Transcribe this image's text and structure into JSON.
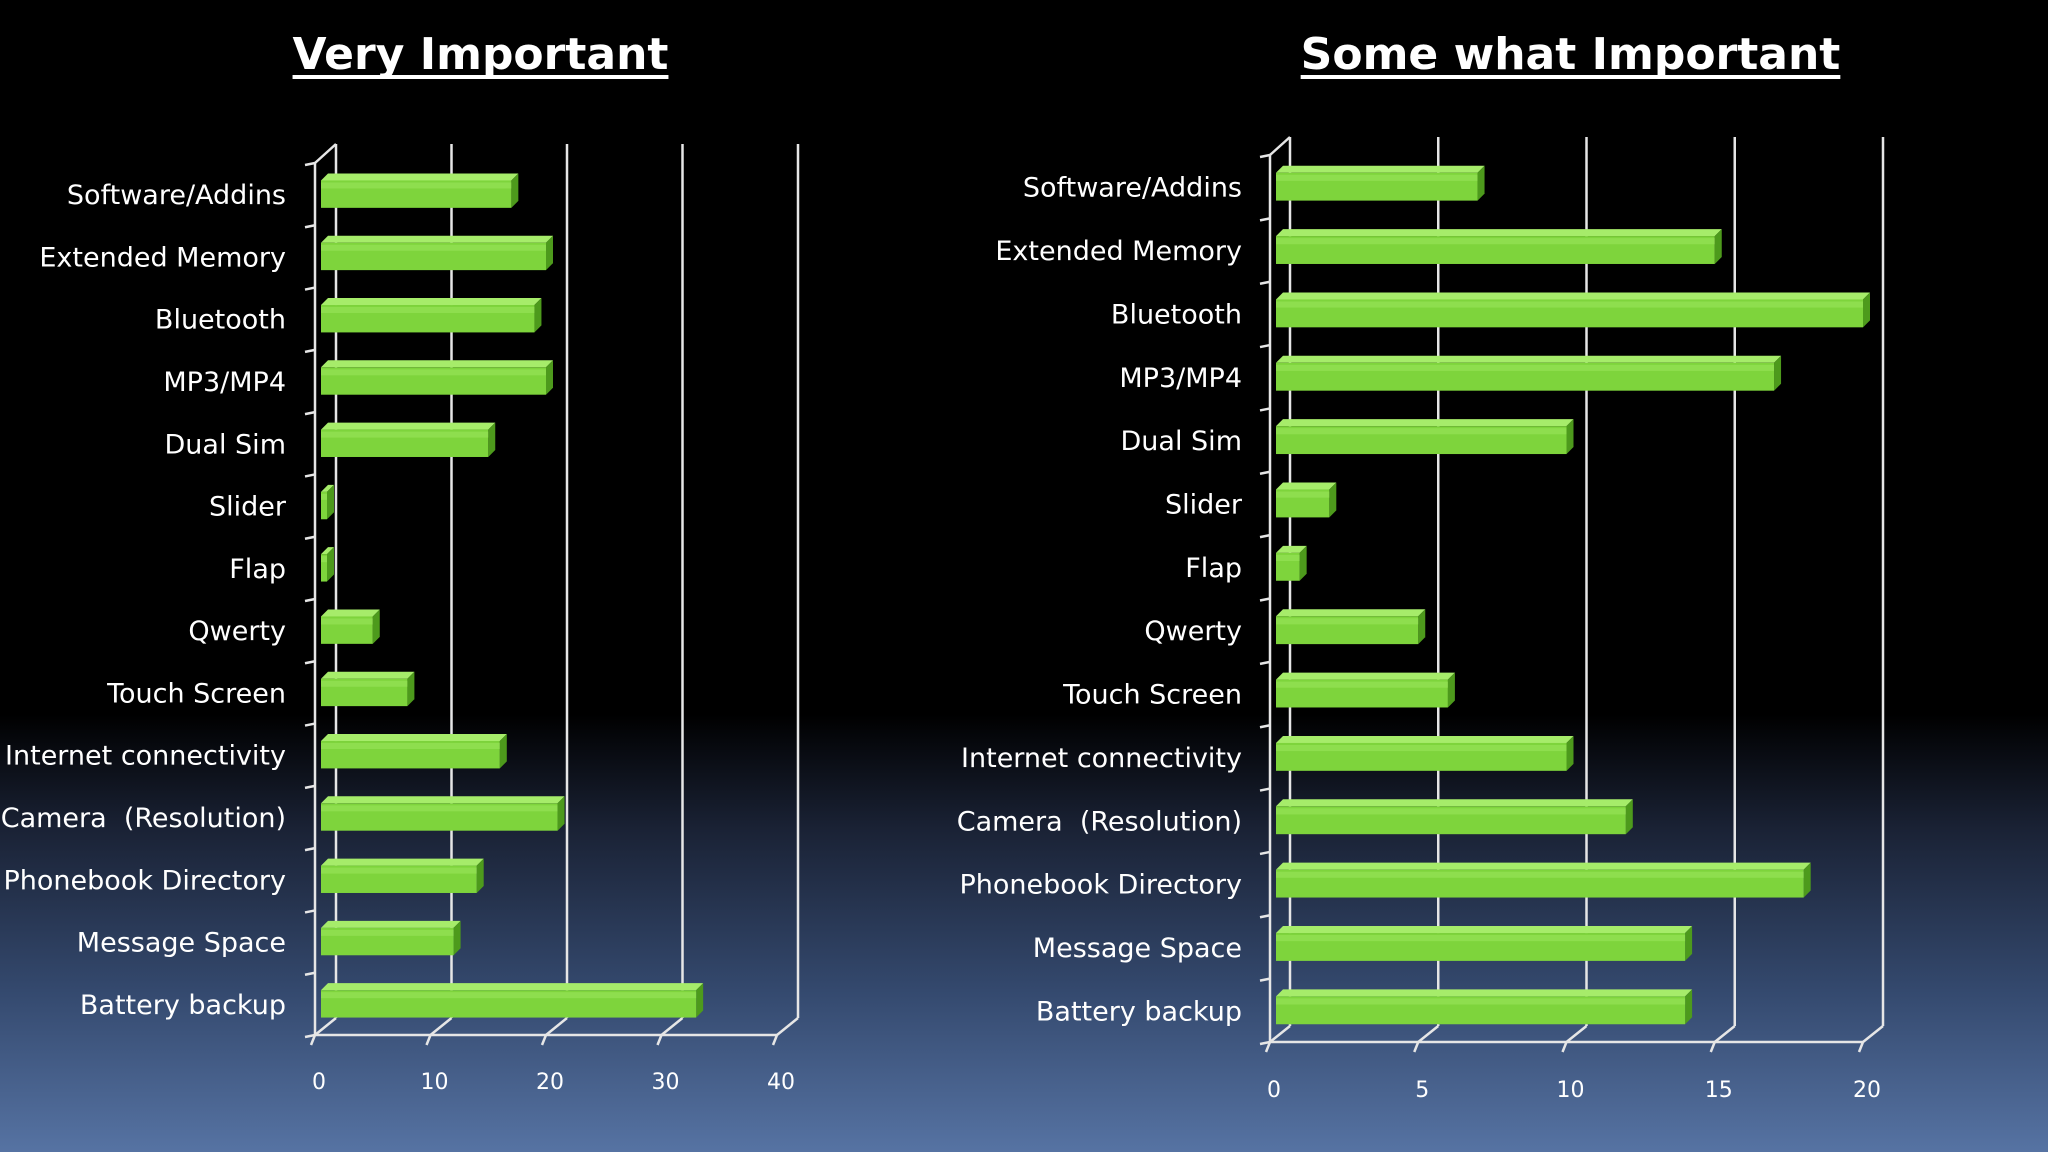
{
  "colors": {
    "bar_front": "#7ed43c",
    "bar_top": "#a6ec6a",
    "bar_side": "#4d9a1c",
    "axis": "#e6e6e6",
    "text": "#ffffff"
  },
  "chart_data": [
    {
      "type": "bar",
      "orientation": "horizontal",
      "title": "Very Important",
      "categories": [
        "Software/Addins",
        "Extended Memory",
        "Bluetooth",
        "MP3/MP4",
        "Dual Sim",
        "Slider",
        "Flap",
        "Qwerty",
        "Touch Screen",
        "Internet connectivity",
        "Camera  (Resolution)",
        "Phonebook Directory",
        "Message Space",
        "Battery backup"
      ],
      "values": [
        17,
        20,
        19,
        20,
        15,
        1,
        1,
        5,
        8,
        16,
        21,
        14,
        12,
        33
      ],
      "xlim": [
        0,
        40
      ],
      "ticks": [
        0,
        10,
        20,
        30,
        40
      ],
      "tick_labels": [
        "0",
        "10",
        "20",
        "30",
        "40"
      ],
      "grid": true,
      "legend": "none"
    },
    {
      "type": "bar",
      "orientation": "horizontal",
      "title": "Some what Important",
      "categories": [
        "Software/Addins",
        "Extended Memory",
        "Bluetooth",
        "MP3/MP4",
        "Dual Sim",
        "Slider",
        "Flap",
        "Qwerty",
        "Touch Screen",
        "Internet connectivity",
        "Camera  (Resolution)",
        "Phonebook Directory",
        "Message Space",
        "Battery backup"
      ],
      "values": [
        7,
        15,
        20,
        17,
        10,
        2,
        1,
        5,
        6,
        10,
        12,
        18,
        14,
        14
      ],
      "xlim": [
        0,
        20
      ],
      "ticks": [
        0,
        5,
        10,
        15,
        20
      ],
      "tick_labels": [
        "0",
        "5",
        "10",
        "15",
        "20"
      ],
      "grid": true,
      "legend": "none"
    }
  ]
}
